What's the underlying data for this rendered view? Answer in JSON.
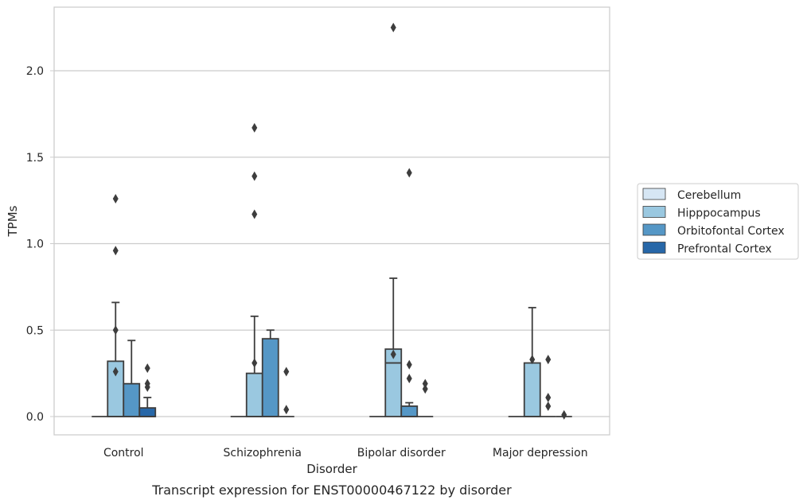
{
  "chart_data": {
    "type": "box",
    "caption": "Transcript expression for ENST00000467122 by disorder",
    "xlabel": "Disorder",
    "ylabel": "TPMs",
    "ylim": [
      -0.11,
      2.37
    ],
    "yticks": [
      0.0,
      0.5,
      1.0,
      1.5,
      2.0
    ],
    "ytick_labels": [
      "0.0",
      "0.5",
      "1.0",
      "1.5",
      "2.0"
    ],
    "grid": true,
    "legend_position": "right",
    "categories": [
      "Control",
      "Schizophrenia",
      "Bipolar disorder",
      "Major depression"
    ],
    "series": [
      {
        "name": "Cerebellum",
        "color": "#d6e6f4",
        "boxes": [
          {
            "min": 0,
            "q1": 0,
            "median": 0,
            "q3": 0,
            "max": 0,
            "outliers": []
          },
          {
            "min": 0,
            "q1": 0,
            "median": 0,
            "q3": 0,
            "max": 0,
            "outliers": []
          },
          {
            "min": 0,
            "q1": 0,
            "median": 0,
            "q3": 0,
            "max": 0,
            "outliers": []
          },
          {
            "min": 0,
            "q1": 0,
            "median": 0,
            "q3": 0,
            "max": 0,
            "outliers": []
          }
        ]
      },
      {
        "name": "Hipppocampus",
        "color": "#9ac8e0",
        "boxes": [
          {
            "min": 0,
            "q1": 0,
            "median": 0,
            "q3": 0.32,
            "max": 0.66,
            "outliers": [
              0.26,
              0.5,
              0.96,
              1.26
            ]
          },
          {
            "min": 0,
            "q1": 0,
            "median": 0,
            "q3": 0.25,
            "max": 0.58,
            "outliers": [
              0.31,
              1.17,
              1.39,
              1.67
            ]
          },
          {
            "min": 0,
            "q1": 0,
            "median": 0.31,
            "q3": 0.39,
            "max": 0.8,
            "outliers": [
              0.36,
              2.25
            ]
          },
          {
            "min": 0,
            "q1": 0,
            "median": 0,
            "q3": 0.31,
            "max": 0.63,
            "outliers": [
              0.33
            ]
          }
        ]
      },
      {
        "name": "Orbitofontal Cortex",
        "color": "#5597c6",
        "boxes": [
          {
            "min": 0,
            "q1": 0,
            "median": 0,
            "q3": 0.19,
            "max": 0.44,
            "outliers": []
          },
          {
            "min": 0,
            "q1": 0,
            "median": 0,
            "q3": 0.45,
            "max": 0.5,
            "outliers": []
          },
          {
            "min": 0,
            "q1": 0,
            "median": 0,
            "q3": 0.06,
            "max": 0.08,
            "outliers": [
              0.22,
              0.3,
              1.41
            ]
          },
          {
            "min": 0,
            "q1": 0,
            "median": 0,
            "q3": 0,
            "max": 0,
            "outliers": [
              0.06,
              0.11,
              0.33
            ]
          }
        ]
      },
      {
        "name": "Prefrontal Cortex",
        "color": "#2767a8",
        "boxes": [
          {
            "min": 0,
            "q1": 0,
            "median": 0,
            "q3": 0.05,
            "max": 0.11,
            "outliers": [
              0.17,
              0.19,
              0.28
            ]
          },
          {
            "min": 0,
            "q1": 0,
            "median": 0,
            "q3": 0,
            "max": 0,
            "outliers": [
              0.04,
              0.26
            ]
          },
          {
            "min": 0,
            "q1": 0,
            "median": 0,
            "q3": 0,
            "max": 0,
            "outliers": [
              0.16,
              0.19
            ]
          },
          {
            "min": 0,
            "q1": 0,
            "median": 0,
            "q3": 0,
            "max": 0,
            "outliers": [
              0.01
            ]
          }
        ]
      }
    ]
  }
}
